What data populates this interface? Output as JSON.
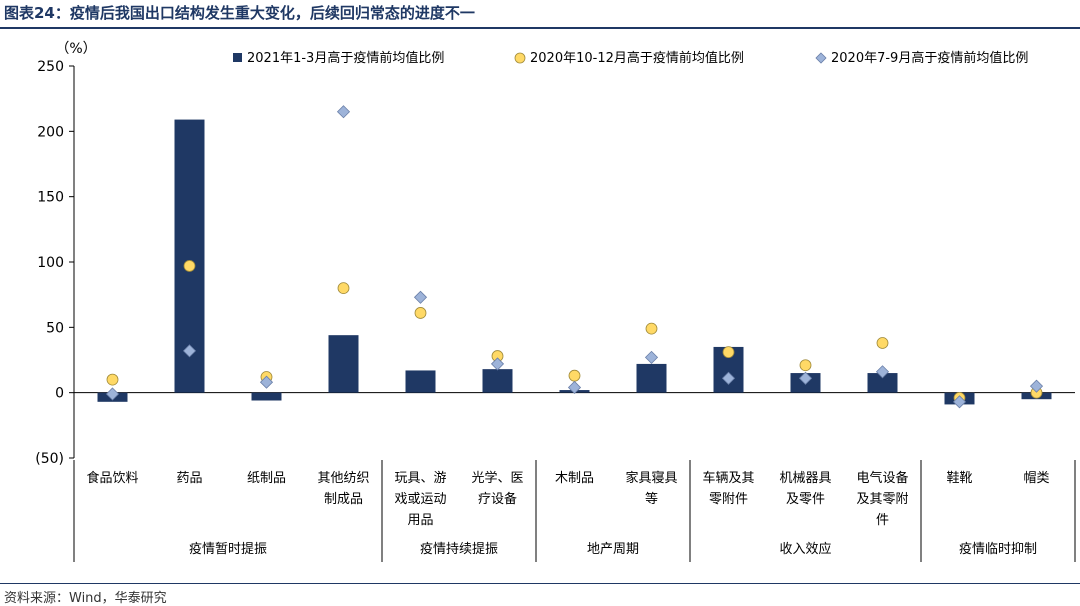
{
  "title": "图表24：疫情后我国出口结构发生重大变化，后续回归常态的进度不一",
  "source": "资料来源：Wind，华泰研究",
  "chart_data": {
    "type": "bar",
    "unit_label": "（%）",
    "ylim": [
      -50,
      250
    ],
    "yticks": [
      {
        "value": 250,
        "label": "250"
      },
      {
        "value": 200,
        "label": "200"
      },
      {
        "value": 150,
        "label": "150"
      },
      {
        "value": 100,
        "label": "100"
      },
      {
        "value": 50,
        "label": "50"
      },
      {
        "value": 0,
        "label": "0"
      },
      {
        "value": -50,
        "label": "(50)"
      }
    ],
    "categories": [
      [
        "食品饮料"
      ],
      [
        "药品"
      ],
      [
        "纸制品"
      ],
      [
        "其他纺织",
        "制成品"
      ],
      [
        "玩具、游",
        "戏或运动",
        "用品"
      ],
      [
        "光学、医",
        "疗设备"
      ],
      [
        "木制品"
      ],
      [
        "家具寝具",
        "等"
      ],
      [
        "车辆及其",
        "零附件"
      ],
      [
        "机械器具",
        "及零件"
      ],
      [
        "电气设备",
        "及其零附",
        "件"
      ],
      [
        "鞋靴"
      ],
      [
        "帽类"
      ]
    ],
    "groups": [
      {
        "label": "疫情暂时提振",
        "start": 0,
        "end": 3
      },
      {
        "label": "疫情持续提振",
        "start": 4,
        "end": 5
      },
      {
        "label": "地产周期",
        "start": 6,
        "end": 7
      },
      {
        "label": "收入效应",
        "start": 8,
        "end": 10
      },
      {
        "label": "疫情临时抑制",
        "start": 11,
        "end": 12
      }
    ],
    "series": [
      {
        "name": "2021年1-3月高于疫情前均值比例",
        "kind": "bar",
        "color": "#1f3864",
        "values": [
          -7,
          209,
          -6,
          44,
          17,
          18,
          2,
          22,
          35,
          15,
          15,
          -9,
          -5
        ]
      },
      {
        "name": "2020年10-12月高于疫情前均值比例",
        "kind": "circle",
        "color": "#ffd966",
        "values": [
          10,
          97,
          12,
          80,
          61,
          28,
          13,
          49,
          31,
          21,
          38,
          -4,
          0
        ]
      },
      {
        "name": "2020年7-9月高于疫情前均值比例",
        "kind": "diamond",
        "color": "#9db3d9",
        "values": [
          -1,
          32,
          8,
          215,
          73,
          22,
          4,
          27,
          11,
          11,
          16,
          -7,
          5
        ]
      }
    ],
    "legend_position": "top",
    "grid": false
  }
}
